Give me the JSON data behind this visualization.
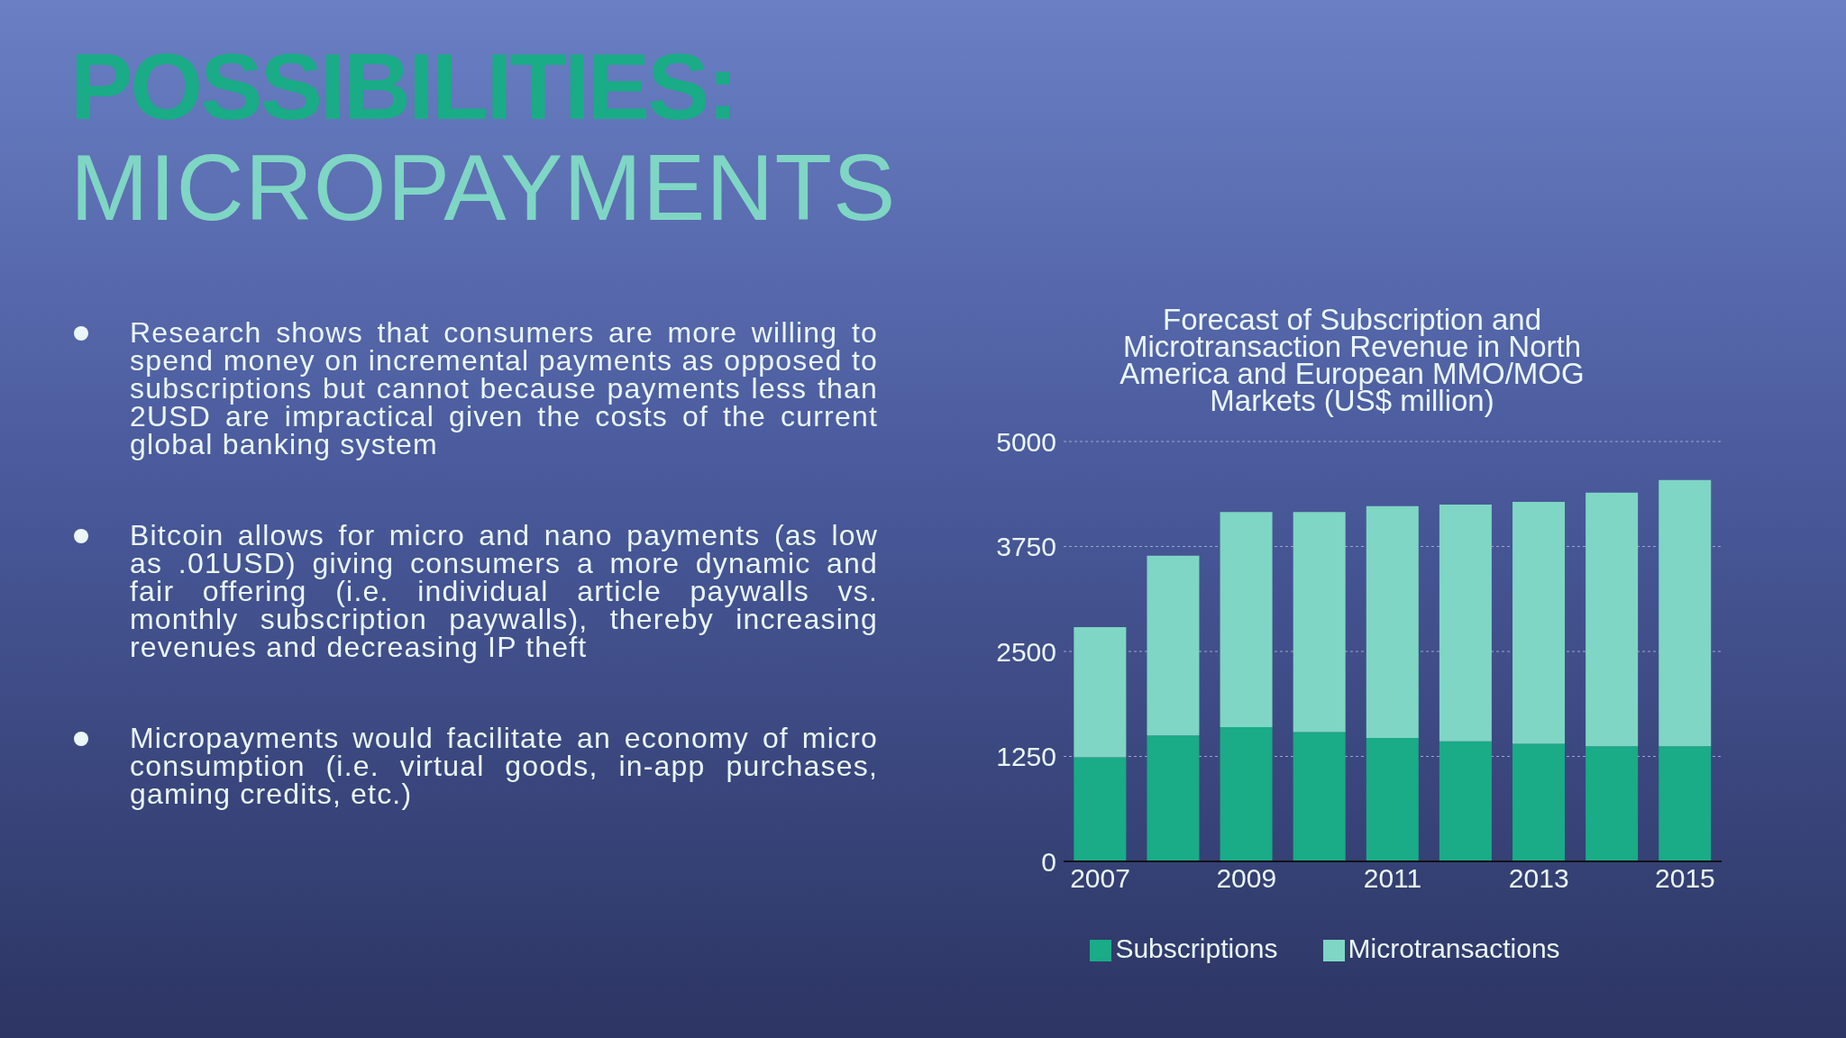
{
  "chart_data": [
    {
      "type": "other",
      "title": "POSSIBILITIES:",
      "subtitle": "MICROPAYMENTS",
      "annotations": [
        "Research shows that consumers are more willing to spend money on incremental payments as opposed to subscriptions but cannot because payments less than 2USD are impractical given the costs of the current global banking system",
        "Bitcoin allows for micro and nano payments (as low as .01USD) giving consumers a more dynamic and fair offering (i.e. individual article paywalls vs. monthly subscription paywalls), thereby increasing revenues and decreasing IP theft",
        "Micropayments would facilitate an economy of micro consumption (i.e. virtual goods, in-app purchases, gaming credits, etc.)"
      ]
    },
    {
      "type": "bar",
      "title": "Forecast of Subscription and Microtransaction Revenue in North America and European MMO/MOG Markets (US$ million)",
      "stacked": true,
      "categories": [
        "2007",
        null,
        "2009",
        null,
        "2011",
        null,
        "2013",
        null,
        "2015"
      ],
      "series": [
        {
          "name": "Subscriptions",
          "color": "#1aab87",
          "values": [
            1240,
            1500,
            1600,
            1540,
            1470,
            1430,
            1400,
            1370,
            1370
          ]
        },
        {
          "name": "Microtransactions",
          "color": "#7fd6c4",
          "values": [
            1550,
            2140,
            2560,
            2620,
            2760,
            2820,
            2880,
            3020,
            3170
          ]
        }
      ],
      "ylim": [
        0,
        5000
      ],
      "yticks": [
        0,
        1250,
        2500,
        3750,
        5000
      ],
      "grid": "y",
      "legend": "bottom"
    }
  ]
}
